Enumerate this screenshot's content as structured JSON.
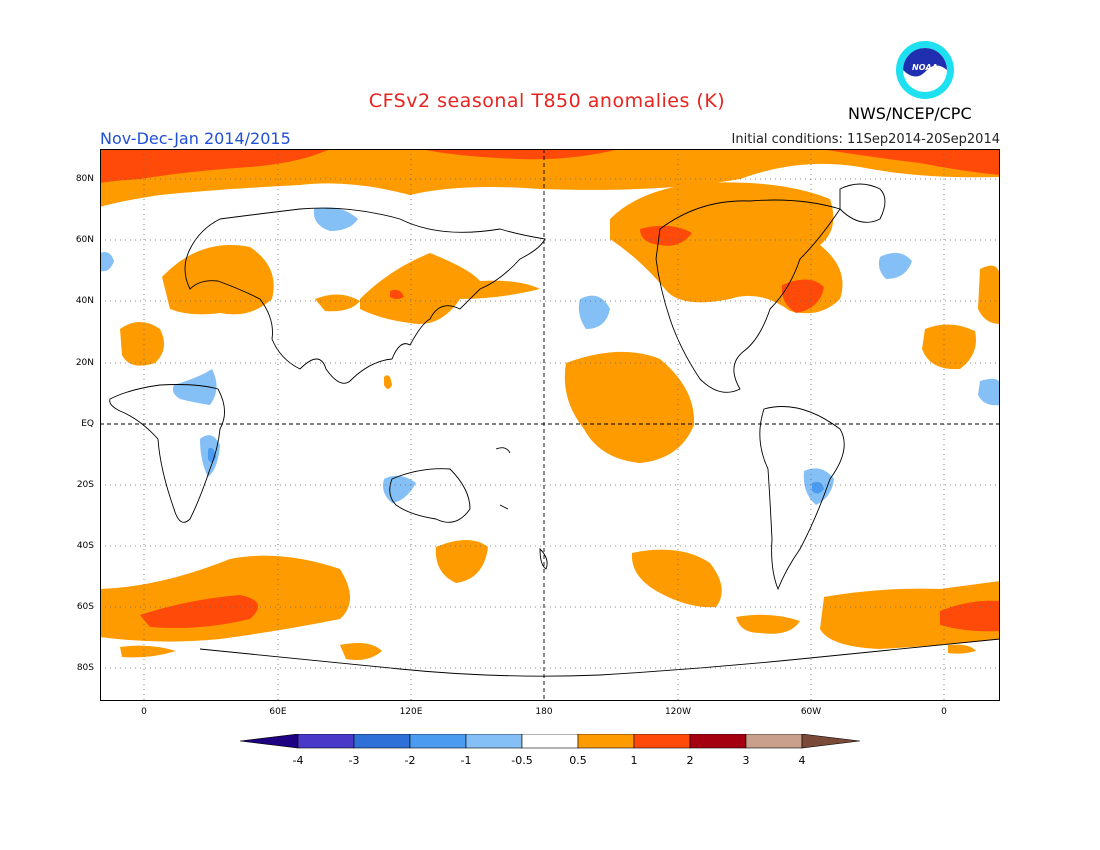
{
  "title": "CFSv2 seasonal T850 anomalies (K)",
  "season": "Nov-Dec-Jan 2014/2015",
  "initial_conditions": "Initial conditions: 11Sep2014-20Sep2014",
  "agency": "NWS/NCEP/CPC",
  "logo_text": "NOAA",
  "lat_labels": [
    "80N",
    "60N",
    "40N",
    "20N",
    "EQ",
    "20S",
    "40S",
    "60S",
    "80S"
  ],
  "lon_labels": [
    "0",
    "60E",
    "120E",
    "180",
    "120W",
    "60W",
    "0"
  ],
  "colorbar": {
    "labels": [
      "-4",
      "-3",
      "-2",
      "-1",
      "-0.5",
      "0.5",
      "1",
      "2",
      "3",
      "4"
    ],
    "colors": [
      "#1e0082",
      "#4a38c9",
      "#2f6fd8",
      "#4b9cf0",
      "#84c0f5",
      "#ffffff",
      "#fe9b00",
      "#ff4a0a",
      "#a50010",
      "#c9a08b",
      "#7a4a38"
    ]
  },
  "colors": {
    "warm_1": "#fe9b00",
    "warm_2": "#ff4a0a",
    "cool_1": "#84c0f5",
    "cool_2": "#4b9cf0",
    "title": "#e8231f",
    "season": "#1f4fd6"
  }
}
